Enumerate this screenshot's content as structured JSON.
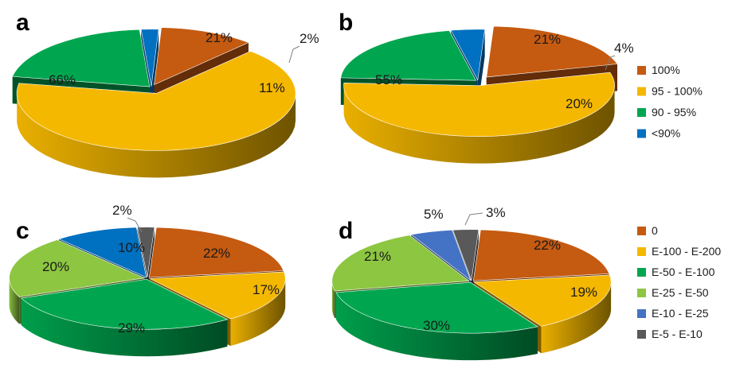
{
  "palette": {
    "orange": "#C55A11",
    "yellow": "#F5B800",
    "green": "#00A64F",
    "lightgreen": "#8DC641",
    "blue": "#0070C0",
    "lightblue": "#4472C4",
    "gray": "#595959"
  },
  "legend_top": [
    {
      "label": "100%",
      "color": "orange"
    },
    {
      "label": "95 - 100%",
      "color": "yellow"
    },
    {
      "label": "90 - 95%",
      "color": "green"
    },
    {
      "label": "<90%",
      "color": "blue"
    }
  ],
  "legend_bottom": [
    {
      "label": "0",
      "color": "orange"
    },
    {
      "label": "E-100 - E-200",
      "color": "yellow"
    },
    {
      "label": "E-50 - E-100",
      "color": "green"
    },
    {
      "label": "E-25 - E-50",
      "color": "lightgreen"
    },
    {
      "label": "E-10 - E-25",
      "color": "lightblue"
    },
    {
      "label": "E-5 - E-10",
      "color": "gray"
    }
  ],
  "chart_data": [
    {
      "panel": "a",
      "type": "pie",
      "title": "",
      "slices": [
        {
          "category": "100%",
          "value": 11,
          "label": "11%",
          "color": "orange"
        },
        {
          "category": "95 - 100%",
          "value": 66,
          "label": "66%",
          "color": "yellow"
        },
        {
          "category": "90 - 95%",
          "value": 21,
          "label": "21%",
          "color": "green"
        },
        {
          "category": "<90%",
          "value": 2,
          "label": "2%",
          "color": "blue"
        }
      ],
      "legend": "right"
    },
    {
      "panel": "b",
      "type": "pie",
      "title": "",
      "slices": [
        {
          "category": "100%",
          "value": 20,
          "label": "20%",
          "color": "orange"
        },
        {
          "category": "95 - 100%",
          "value": 55,
          "label": "55%",
          "color": "yellow"
        },
        {
          "category": "90 - 95%",
          "value": 21,
          "label": "21%",
          "color": "green"
        },
        {
          "category": "<90%",
          "value": 4,
          "label": "4%",
          "color": "blue"
        }
      ],
      "legend": "right"
    },
    {
      "panel": "c",
      "type": "pie",
      "title": "",
      "slices": [
        {
          "category": "0",
          "value": 22,
          "label": "22%",
          "color": "orange"
        },
        {
          "category": "E-100 - E-200",
          "value": 17,
          "label": "17%",
          "color": "yellow"
        },
        {
          "category": "E-50 - E-100",
          "value": 29,
          "label": "29%",
          "color": "green"
        },
        {
          "category": "E-25 - E-50",
          "value": 20,
          "label": "20%",
          "color": "lightgreen"
        },
        {
          "category": "E-10 - E-25",
          "value": 10,
          "label": "10%",
          "color": "blue"
        },
        {
          "category": "E-5 - E-10",
          "value": 2,
          "label": "2%",
          "color": "gray"
        }
      ],
      "legend": "right"
    },
    {
      "panel": "d",
      "type": "pie",
      "title": "",
      "slices": [
        {
          "category": "0",
          "value": 22,
          "label": "22%",
          "color": "orange"
        },
        {
          "category": "E-100 - E-200",
          "value": 19,
          "label": "19%",
          "color": "yellow"
        },
        {
          "category": "E-50 - E-100",
          "value": 30,
          "label": "30%",
          "color": "green"
        },
        {
          "category": "E-25 - E-50",
          "value": 21,
          "label": "21%",
          "color": "lightgreen"
        },
        {
          "category": "E-10 - E-25",
          "value": 5,
          "label": "5%",
          "color": "lightblue"
        },
        {
          "category": "E-5 - E-10",
          "value": 3,
          "label": "3%",
          "color": "gray"
        }
      ],
      "legend": "right"
    }
  ]
}
